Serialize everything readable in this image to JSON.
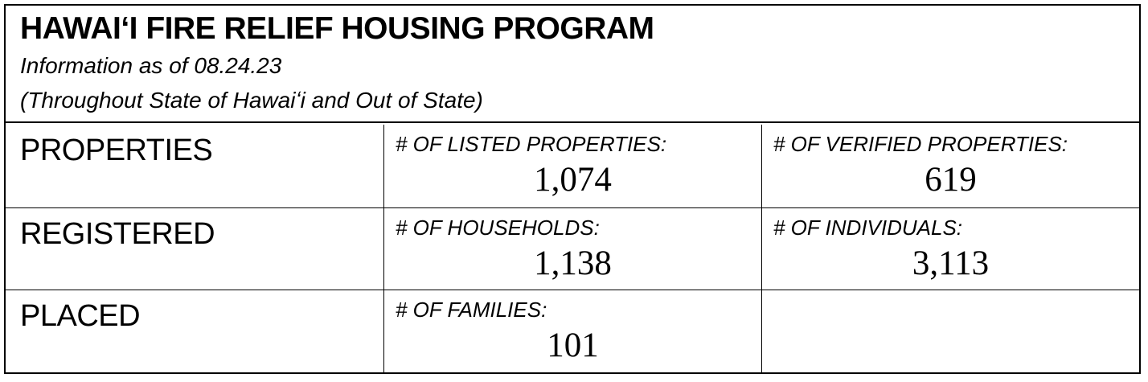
{
  "header": {
    "title": "HAWAIʻI FIRE RELIEF HOUSING PROGRAM",
    "subtitle1": "Information as of 08.24.23",
    "subtitle2": "(Throughout State of Hawaiʻi and Out of State)"
  },
  "table": {
    "rows": [
      {
        "label": "PROPERTIES",
        "cells": [
          {
            "label": "# OF LISTED PROPERTIES:",
            "value": "1,074"
          },
          {
            "label": "# OF VERIFIED PROPERTIES:",
            "value": "619"
          }
        ]
      },
      {
        "label": "REGISTERED",
        "cells": [
          {
            "label": "# OF HOUSEHOLDS:",
            "value": "1,138"
          },
          {
            "label": "# OF INDIVIDUALS:",
            "value": "3,113"
          }
        ]
      },
      {
        "label": "PLACED",
        "cells": [
          {
            "label": "# OF FAMILIES:",
            "value": "101"
          },
          {
            "label": "",
            "value": ""
          }
        ]
      }
    ]
  },
  "colors": {
    "border": "#000000",
    "text": "#000000",
    "background": "#ffffff"
  }
}
